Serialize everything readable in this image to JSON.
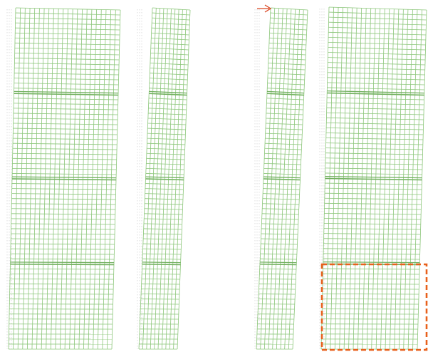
{
  "colors": {
    "mesh": "#8cc67a",
    "mesh_dark": "#6fae5c",
    "ghost": "#c8c8c8",
    "highlight": "#e8601c",
    "arrow": "#d9431e",
    "background": "#ffffff"
  },
  "panels": [
    {
      "name": "panel-1",
      "columns": 22,
      "rows": 68,
      "floors": 4
    },
    {
      "name": "panel-2",
      "columns": 10,
      "rows": 68,
      "floors": 4
    },
    {
      "name": "panel-3",
      "columns": 9,
      "rows": 68,
      "floors": 4
    },
    {
      "name": "panel-4",
      "columns": 21,
      "rows": 68,
      "floors": 4
    }
  ],
  "annotations": {
    "arrow_icon": "arrow-right-icon",
    "highlight_box": "dashed-selection-box"
  }
}
